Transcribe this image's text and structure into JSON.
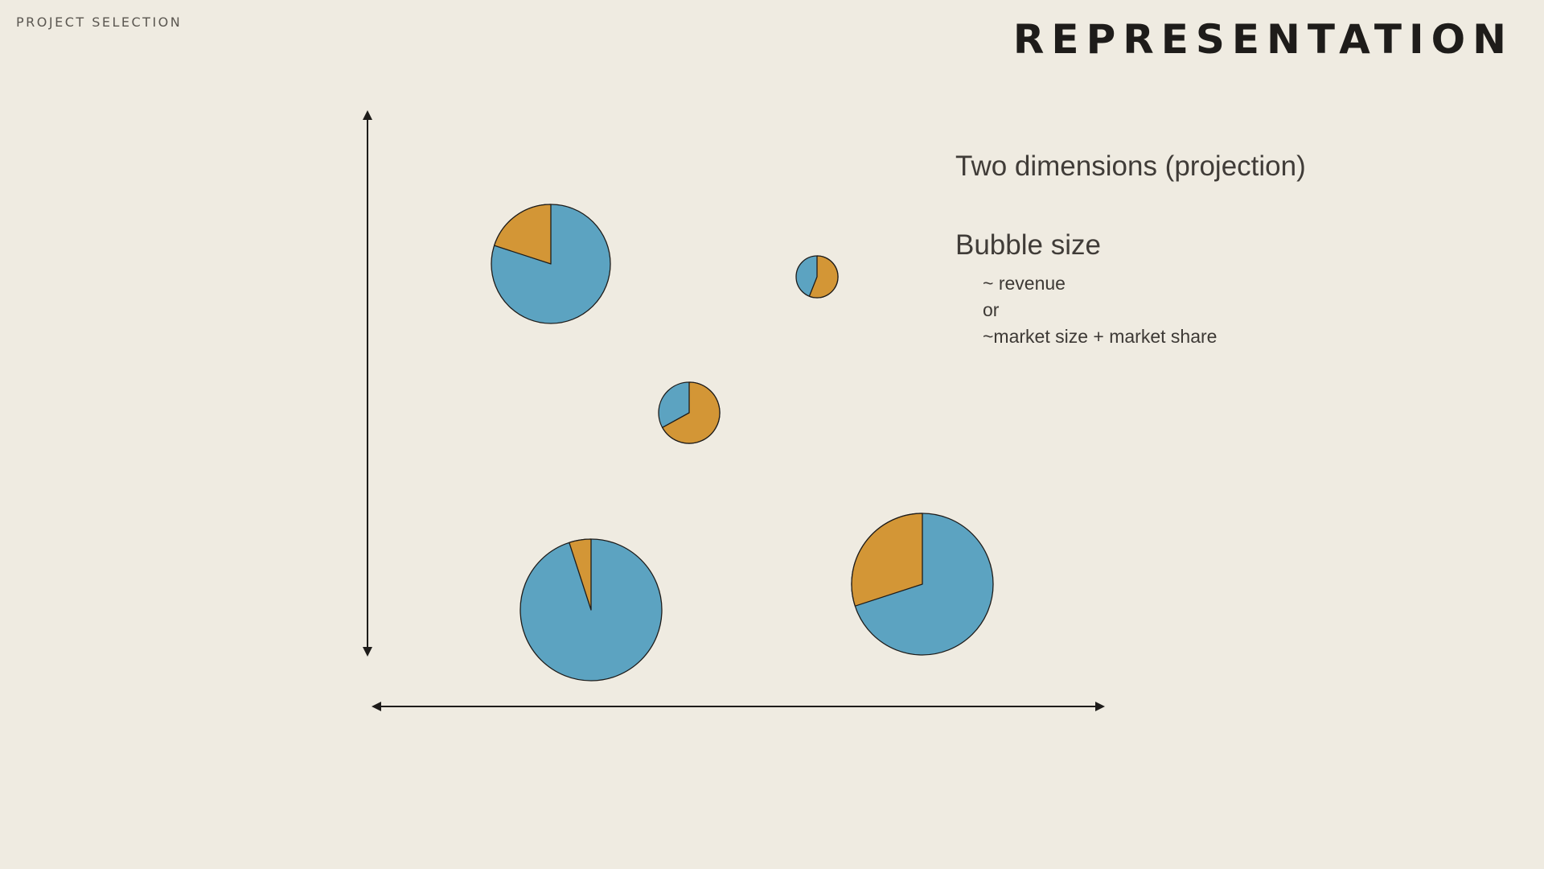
{
  "header": {
    "eyebrow": "PROJECT SELECTION",
    "title": "REPRESENTATION"
  },
  "notes": {
    "dimensions": "Two dimensions (projection)",
    "bubble_heading": "Bubble size",
    "bubble_items": [
      "~ revenue",
      "or",
      "~market size + market share"
    ]
  },
  "colors": {
    "background": "#efebe1",
    "segment_primary": "#5ca3c1",
    "segment_secondary": "#d39636",
    "outline": "#1e1c1a"
  },
  "bubbles": [
    {
      "id": "bubble-1",
      "secondary_share": 0.2
    },
    {
      "id": "bubble-2",
      "secondary_share": 0.56
    },
    {
      "id": "bubble-3",
      "secondary_share": 0.67
    },
    {
      "id": "bubble-4",
      "secondary_share": 0.05
    },
    {
      "id": "bubble-5",
      "secondary_share": 0.3
    }
  ]
}
